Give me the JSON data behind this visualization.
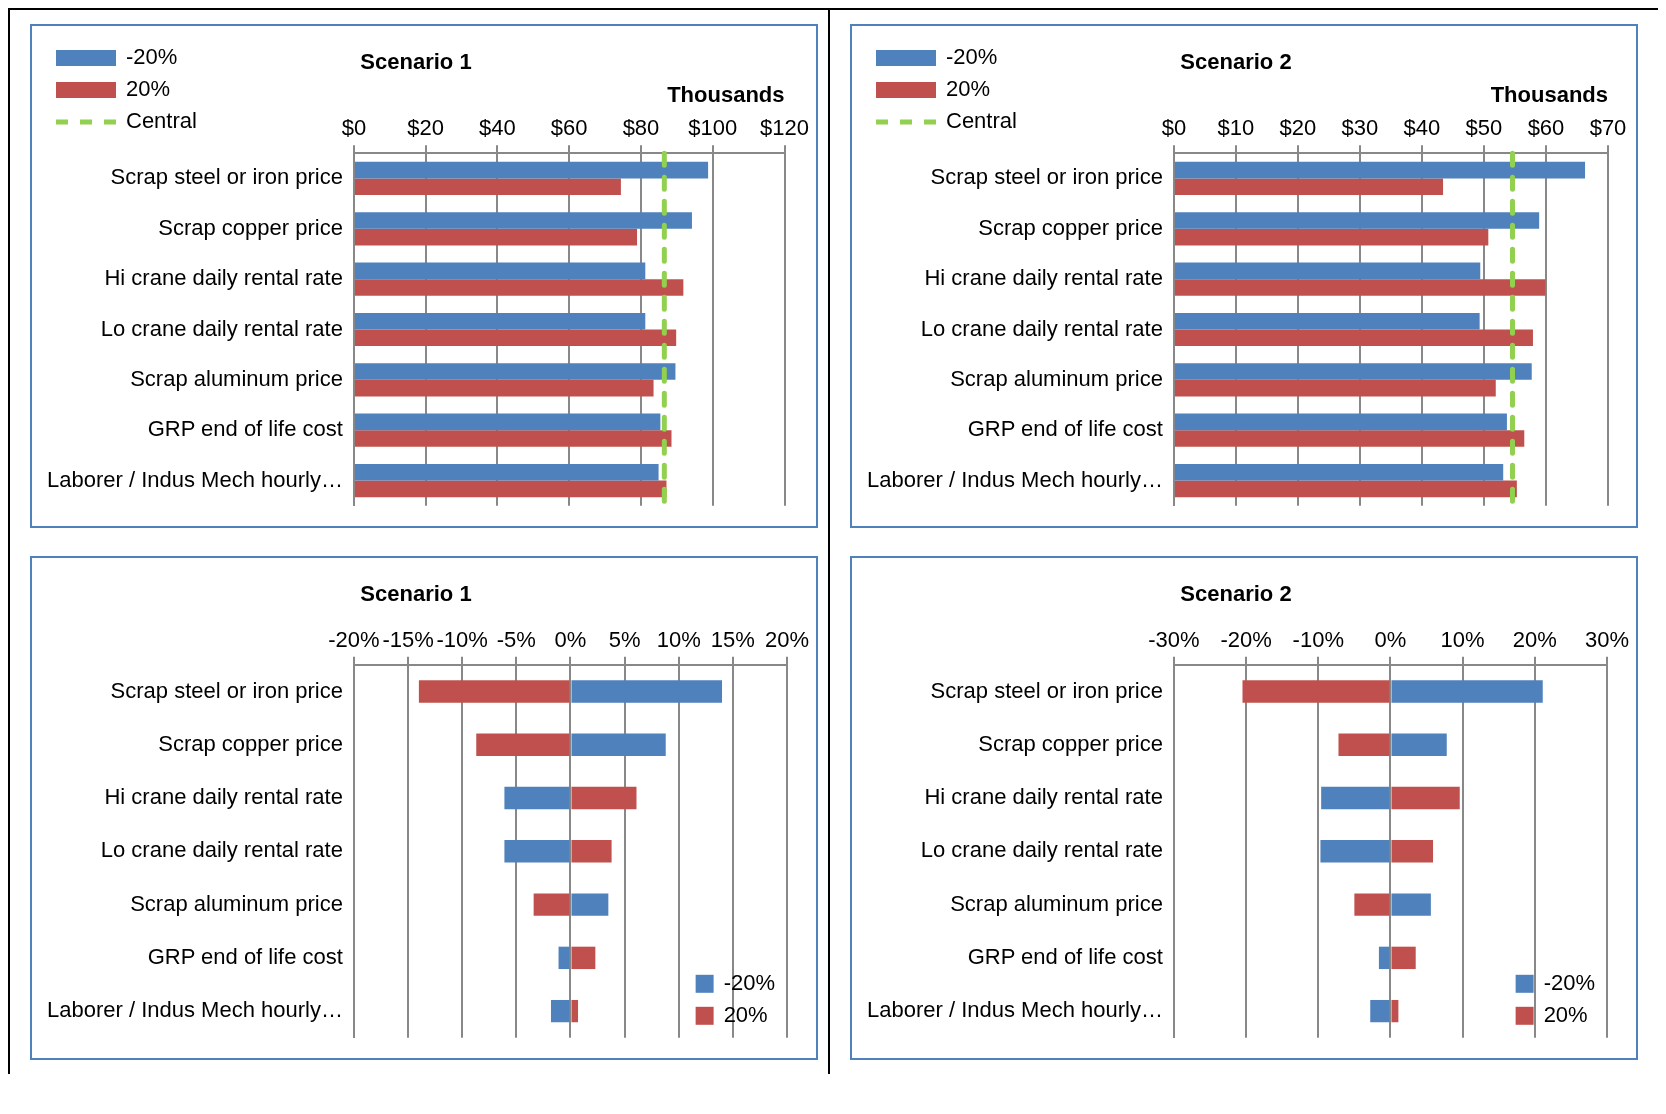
{
  "chart_data": [
    {
      "type": "bar",
      "orientation": "horizontal",
      "title": "Scenario 1",
      "xlabel": "Thousands",
      "categories": [
        "Scrap steel or iron price",
        "Scrap copper price",
        "Hi crane daily rental rate",
        "Lo crane daily rental rate",
        "Scrap aluminum price",
        "GRP end of life cost",
        "Laborer / Indus Mech hourly…"
      ],
      "series": [
        {
          "name": "-20%",
          "color": "#4f81bd",
          "values": [
            98.7,
            94.2,
            81.2,
            81.2,
            89.6,
            85.4,
            84.9
          ]
        },
        {
          "name": "20%",
          "color": "#c0504d",
          "values": [
            74.4,
            78.9,
            91.8,
            89.8,
            83.5,
            88.5,
            87.1
          ]
        }
      ],
      "ref_lines": [
        {
          "axis": "x",
          "value": 86.5,
          "label": "Central",
          "color": "#92d050",
          "line_style": "dashed"
        }
      ],
      "xlim": [
        0,
        120
      ],
      "xticks": [
        {
          "value": 0,
          "label": "$0"
        },
        {
          "value": 20,
          "label": "$20"
        },
        {
          "value": 40,
          "label": "$40"
        },
        {
          "value": 60,
          "label": "$60"
        },
        {
          "value": 80,
          "label": "$80"
        },
        {
          "value": 100,
          "label": "$100"
        },
        {
          "value": 120,
          "label": "$120"
        }
      ],
      "grid": "x",
      "legend": "top left"
    },
    {
      "type": "bar",
      "orientation": "horizontal",
      "title": "Scenario 2",
      "xlabel": "Thousands",
      "categories": [
        "Scrap steel or iron price",
        "Scrap copper price",
        "Hi crane daily rental rate",
        "Lo crane daily rental rate",
        "Scrap aluminum price",
        "GRP end of life cost",
        "Laborer / Indus Mech hourly…"
      ],
      "series": [
        {
          "name": "-20%",
          "color": "#4f81bd",
          "values": [
            66.3,
            58.9,
            49.4,
            49.3,
            57.7,
            53.7,
            53.1
          ]
        },
        {
          "name": "20%",
          "color": "#c0504d",
          "values": [
            43.4,
            50.7,
            59.9,
            57.9,
            51.9,
            56.5,
            55.3
          ]
        }
      ],
      "ref_lines": [
        {
          "axis": "x",
          "value": 54.6,
          "label": "Central",
          "color": "#92d050",
          "line_style": "dashed"
        }
      ],
      "xlim": [
        0,
        70
      ],
      "xticks": [
        {
          "value": 0,
          "label": "$0"
        },
        {
          "value": 10,
          "label": "$10"
        },
        {
          "value": 20,
          "label": "$20"
        },
        {
          "value": 30,
          "label": "$30"
        },
        {
          "value": 40,
          "label": "$40"
        },
        {
          "value": 50,
          "label": "$50"
        },
        {
          "value": 60,
          "label": "$60"
        },
        {
          "value": 70,
          "label": "$70"
        }
      ],
      "grid": "x",
      "legend": "top left"
    },
    {
      "type": "bar",
      "orientation": "horizontal",
      "stacked": true,
      "title": "Scenario 1",
      "categories": [
        "Scrap steel or iron price",
        "Scrap copper price",
        "Hi crane daily rental rate",
        "Lo crane daily rental rate",
        "Scrap aluminum price",
        "GRP end of life cost",
        "Laborer / Indus Mech hourly…"
      ],
      "series": [
        {
          "name": "-20%",
          "color": "#4f81bd",
          "values": [
            14.0,
            8.8,
            -6.1,
            -6.1,
            3.5,
            -1.1,
            -1.8
          ]
        },
        {
          "name": "20%",
          "color": "#c0504d",
          "values": [
            -14.0,
            -8.7,
            6.1,
            3.8,
            -3.4,
            2.3,
            0.7
          ]
        }
      ],
      "xlim": [
        -20,
        20
      ],
      "xticks": [
        {
          "value": -20,
          "label": "-20%"
        },
        {
          "value": -15,
          "label": "-15%"
        },
        {
          "value": -10,
          "label": "-10%"
        },
        {
          "value": -5,
          "label": "-5%"
        },
        {
          "value": 0,
          "label": "0%"
        },
        {
          "value": 5,
          "label": "5%"
        },
        {
          "value": 10,
          "label": "10%"
        },
        {
          "value": 15,
          "label": "15%"
        },
        {
          "value": 20,
          "label": "20%"
        }
      ],
      "grid": "x",
      "legend": "bottom right"
    },
    {
      "type": "bar",
      "orientation": "horizontal",
      "stacked": true,
      "title": "Scenario 2",
      "categories": [
        "Scrap steel or iron price",
        "Scrap copper price",
        "Hi crane daily rental rate",
        "Lo crane daily rental rate",
        "Scrap aluminum price",
        "GRP end of life cost",
        "Laborer / Indus Mech hourly…"
      ],
      "series": [
        {
          "name": "-20%",
          "color": "#4f81bd",
          "values": [
            21.1,
            7.8,
            -9.6,
            -9.7,
            5.6,
            -1.6,
            -2.8
          ]
        },
        {
          "name": "20%",
          "color": "#c0504d",
          "values": [
            -20.5,
            -7.2,
            9.6,
            5.9,
            -5.0,
            3.5,
            1.1
          ]
        }
      ],
      "xlim": [
        -30,
        30
      ],
      "xticks": [
        {
          "value": -30,
          "label": "-30%"
        },
        {
          "value": -20,
          "label": "-20%"
        },
        {
          "value": -10,
          "label": "-10%"
        },
        {
          "value": 0,
          "label": "0%"
        },
        {
          "value": 10,
          "label": "10%"
        },
        {
          "value": 20,
          "label": "20%"
        },
        {
          "value": 30,
          "label": "30%"
        }
      ],
      "grid": "x",
      "legend": "bottom right"
    }
  ]
}
